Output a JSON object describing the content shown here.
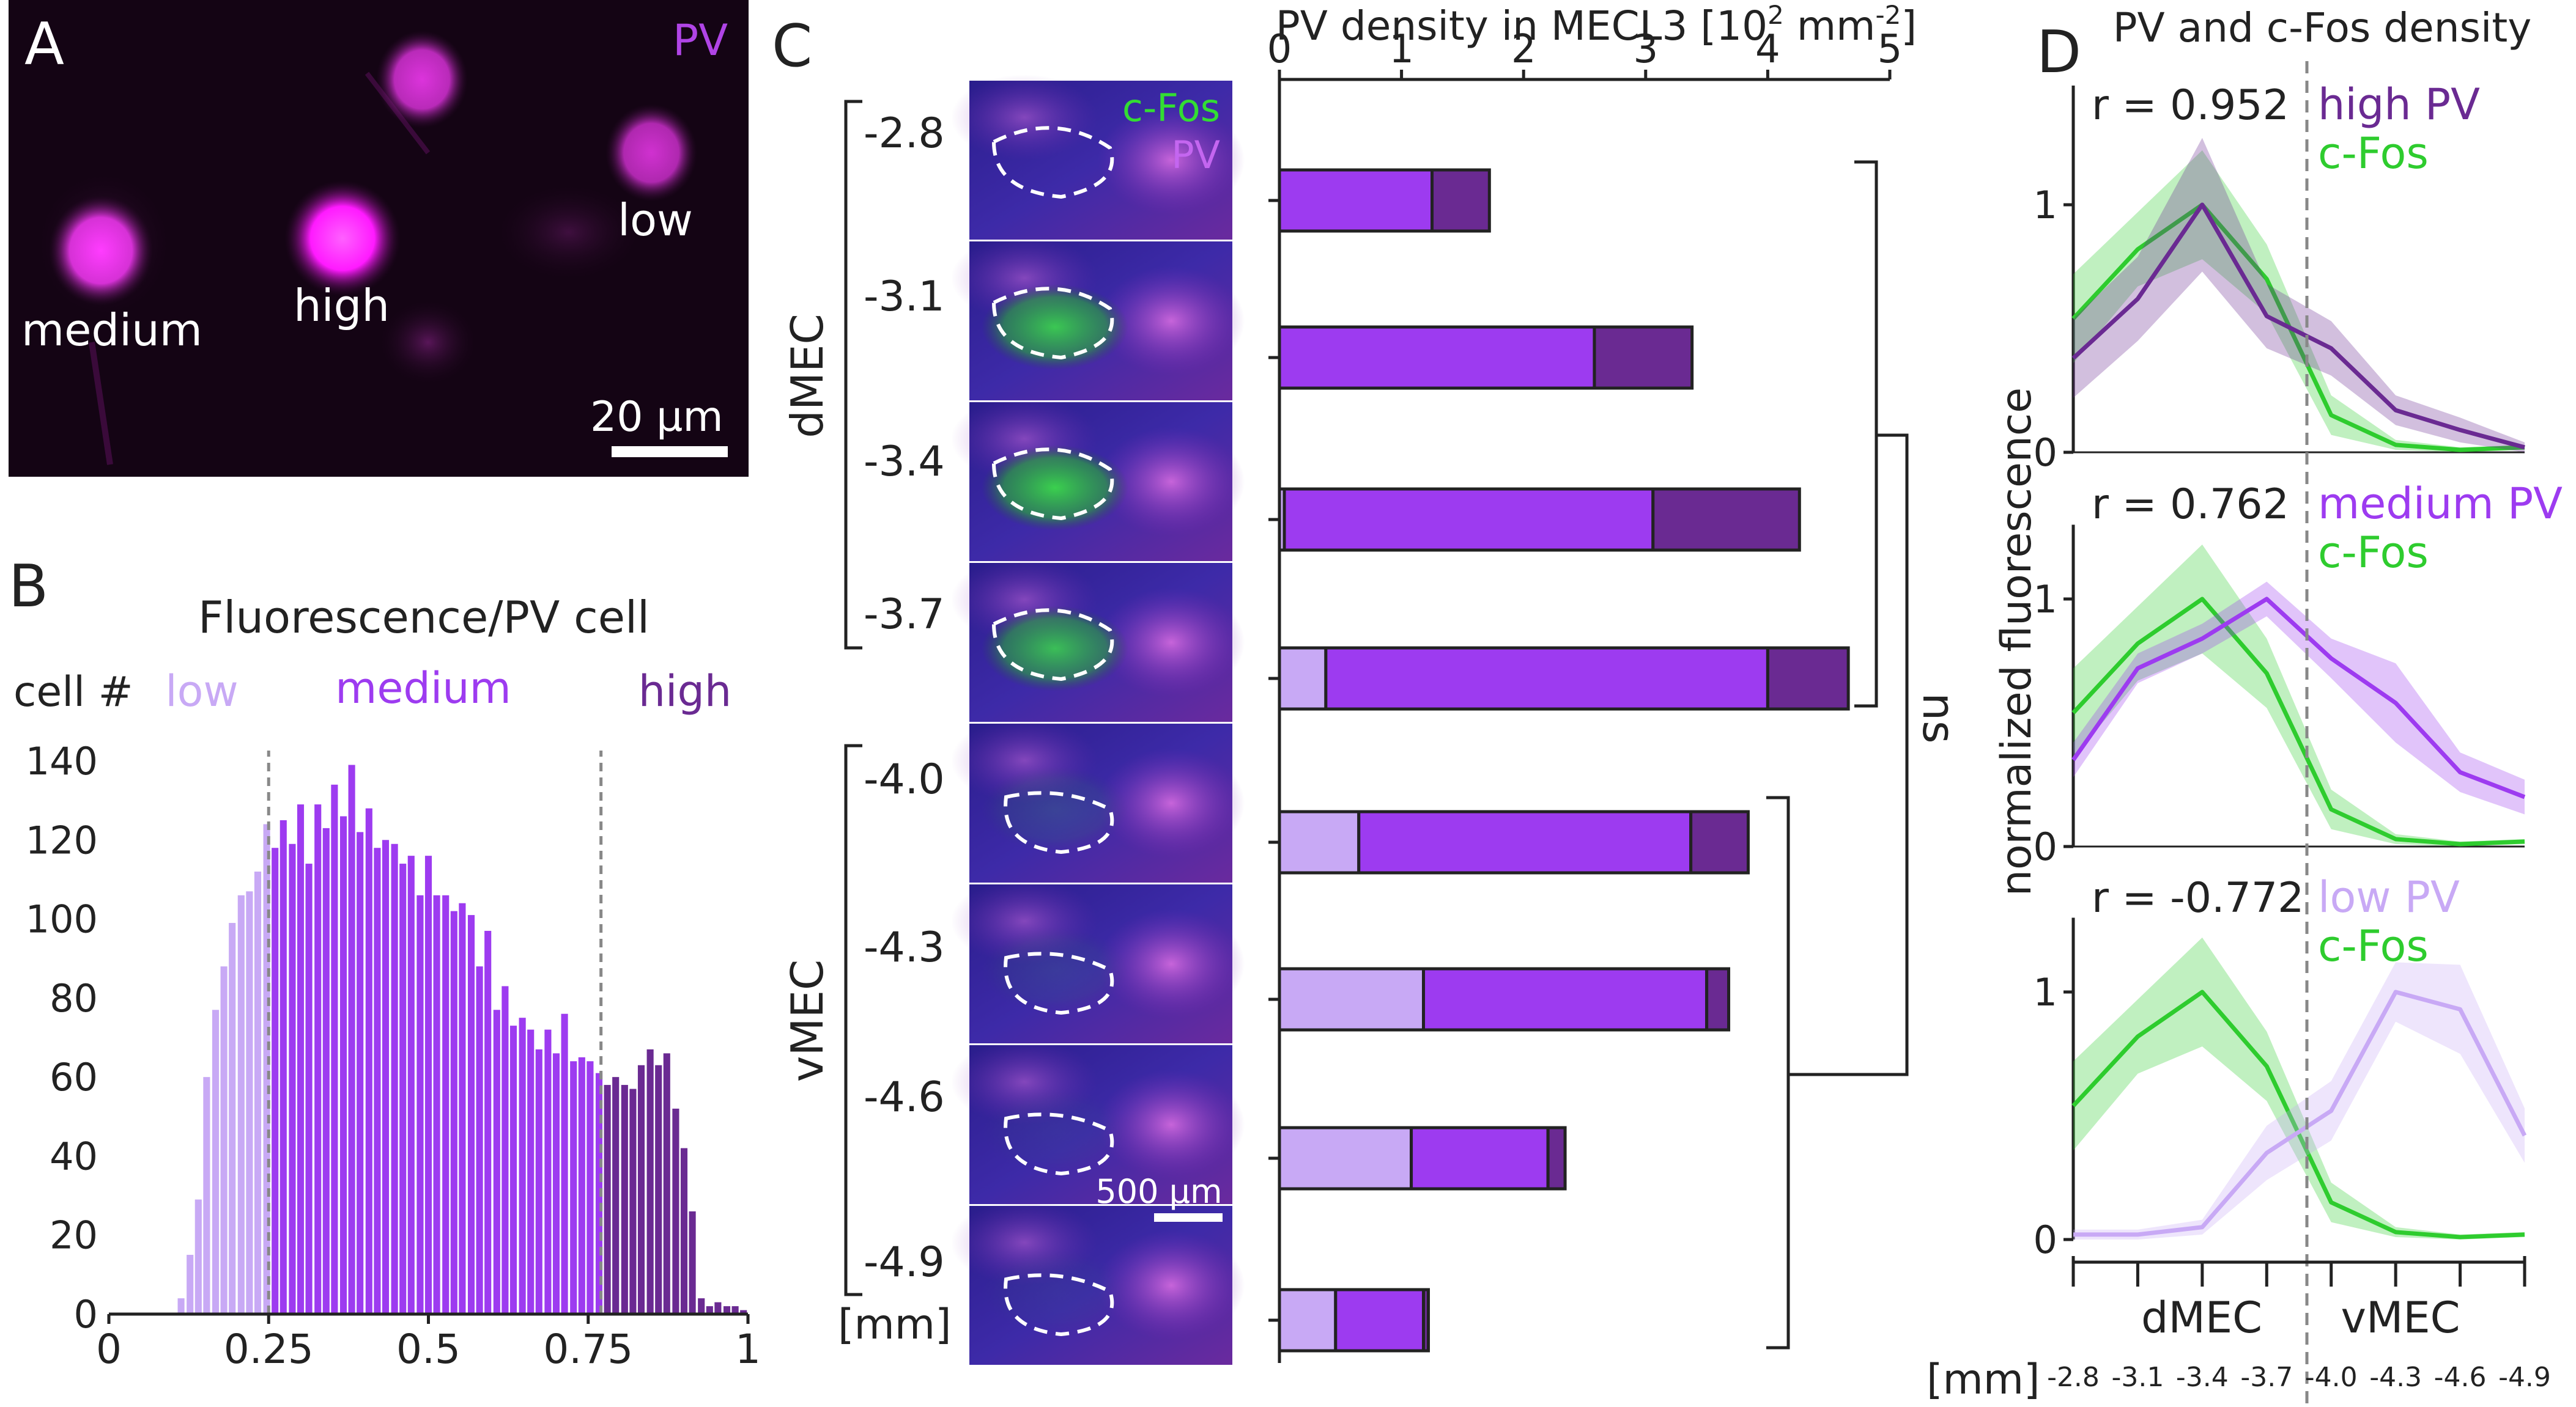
{
  "colors": {
    "low": "#c8a9f5",
    "medium": "#9d3bf0",
    "high": "#6a2a92",
    "cfos": "#2ecc2e",
    "pv": "#cc33cc",
    "dashed": "#888888",
    "text": "#222222"
  },
  "panels": {
    "A": {
      "letter": "A",
      "pv_label": "PV",
      "cells": [
        "medium",
        "high",
        "low"
      ],
      "scalebar": "20 µm"
    },
    "B": {
      "letter": "B",
      "title": "Fluorescence/PV cell",
      "ylabel": "cell #",
      "group_labels": [
        "low",
        "medium",
        "high"
      ]
    },
    "C": {
      "letter": "C",
      "title_prefix": "PV density in MECL3 [10",
      "title_sup1": "2",
      "title_mid": " mm",
      "title_sup2": "-2",
      "title_suffix": "]",
      "image_labels": {
        "cfos": "c-Fos",
        "pv": "PV",
        "scalebar": "500 µm"
      },
      "dmec": "dMEC",
      "vmec": "vMEC",
      "mm": "[mm]",
      "ns": "ns"
    },
    "D": {
      "letter": "D",
      "title": "PV and c-Fos density",
      "ylabel": "normalized fluorescence",
      "xgroup_labels": [
        "dMEC",
        "vMEC"
      ],
      "mm": "[mm]",
      "r_values": [
        "r = 0.952",
        "r = 0.762",
        "r = -0.772"
      ],
      "legend_pv": [
        "high PV",
        "medium PV",
        "low PV"
      ],
      "legend_cfos": "c-Fos"
    }
  },
  "chart_data": [
    {
      "id": "B",
      "type": "bar",
      "title": "Fluorescence/PV cell",
      "xlabel": "",
      "ylabel": "cell #",
      "xlim": [
        0,
        1
      ],
      "ylim": [
        0,
        140
      ],
      "xticks": [
        0,
        0.25,
        0.5,
        0.75,
        1
      ],
      "xtick_labels": [
        "0",
        "0.25",
        "0.5",
        "0.75",
        "1"
      ],
      "yticks": [
        0,
        20,
        40,
        60,
        80,
        100,
        120,
        140
      ],
      "bin_width": 0.0133,
      "bin_centers": [
        0.113,
        0.127,
        0.14,
        0.153,
        0.167,
        0.18,
        0.193,
        0.207,
        0.22,
        0.233,
        0.247,
        0.26,
        0.273,
        0.287,
        0.3,
        0.313,
        0.327,
        0.34,
        0.353,
        0.367,
        0.38,
        0.393,
        0.407,
        0.42,
        0.433,
        0.447,
        0.46,
        0.473,
        0.487,
        0.5,
        0.513,
        0.527,
        0.54,
        0.553,
        0.567,
        0.58,
        0.593,
        0.607,
        0.62,
        0.633,
        0.647,
        0.66,
        0.673,
        0.687,
        0.7,
        0.713,
        0.727,
        0.74,
        0.753,
        0.767,
        0.78,
        0.793,
        0.807,
        0.82,
        0.833,
        0.847,
        0.86,
        0.873,
        0.887,
        0.9,
        0.913,
        0.927,
        0.94,
        0.953,
        0.967,
        0.98,
        0.993
      ],
      "counts": [
        4,
        15,
        29,
        60,
        77,
        88,
        99,
        106,
        107,
        112,
        124,
        118,
        125,
        119,
        129,
        114,
        129,
        123,
        134,
        126,
        139,
        122,
        128,
        118,
        120,
        119,
        114,
        116,
        106,
        116,
        106,
        106,
        102,
        104,
        101,
        88,
        97,
        77,
        83,
        73,
        75,
        72,
        67,
        72,
        66,
        76,
        64,
        65,
        64,
        61,
        58,
        60,
        58,
        57,
        63,
        67,
        63,
        66,
        52,
        42,
        26,
        4,
        2,
        3,
        2,
        2,
        1
      ],
      "thresholds": [
        0.25,
        0.77
      ],
      "groups": [
        "low",
        "medium",
        "high"
      ]
    },
    {
      "id": "C",
      "type": "bar",
      "orientation": "horizontal",
      "stacked": true,
      "title": "PV density in MECL3 [10^2 mm^-2]",
      "xlim": [
        0,
        5
      ],
      "xticks": [
        0,
        1,
        2,
        3,
        4,
        5
      ],
      "categories": [
        "-2.8",
        "-3.1",
        "-3.4",
        "-3.7",
        "-4.0",
        "-4.3",
        "-4.6",
        "-4.9"
      ],
      "series": [
        {
          "name": "low",
          "values": [
            0.0,
            0.0,
            0.04,
            0.38,
            0.65,
            1.18,
            1.08,
            0.46
          ]
        },
        {
          "name": "medium",
          "values": [
            1.25,
            2.58,
            3.02,
            3.62,
            2.72,
            2.32,
            1.12,
            0.72
          ]
        },
        {
          "name": "high",
          "values": [
            0.47,
            0.8,
            1.2,
            0.66,
            0.47,
            0.18,
            0.14,
            0.04
          ]
        }
      ],
      "annotation": "ns"
    },
    {
      "id": "D",
      "type": "line",
      "title": "PV and c-Fos density",
      "ylabel": "normalized fluorescence",
      "x": [
        "-2.8",
        "-3.1",
        "-3.4",
        "-3.7",
        "-4.0",
        "-4.3",
        "-4.6",
        "-4.9"
      ],
      "ylim": [
        0,
        1.3
      ],
      "yticks": [
        0,
        1
      ],
      "subplots": [
        {
          "r": 0.952,
          "series": [
            {
              "name": "high PV",
              "values": [
                0.38,
                0.62,
                1.0,
                0.55,
                0.42,
                0.17,
                0.09,
                0.02
              ],
              "err": [
                0.16,
                0.17,
                0.27,
                0.13,
                0.11,
                0.06,
                0.05,
                0.02
              ]
            },
            {
              "name": "c-Fos",
              "values": [
                0.54,
                0.82,
                1.0,
                0.7,
                0.15,
                0.03,
                0.01,
                0.02
              ],
              "err": [
                0.18,
                0.15,
                0.22,
                0.14,
                0.08,
                0.02,
                0.01,
                0.01
              ]
            }
          ]
        },
        {
          "r": 0.762,
          "series": [
            {
              "name": "medium PV",
              "values": [
                0.35,
                0.72,
                0.84,
                1.0,
                0.76,
                0.58,
                0.3,
                0.2
              ],
              "err": [
                0.07,
                0.06,
                0.06,
                0.07,
                0.08,
                0.16,
                0.08,
                0.07
              ]
            },
            {
              "name": "c-Fos",
              "values": [
                0.54,
                0.82,
                1.0,
                0.7,
                0.15,
                0.03,
                0.01,
                0.02
              ],
              "err": [
                0.18,
                0.15,
                0.22,
                0.14,
                0.08,
                0.02,
                0.01,
                0.01
              ]
            }
          ]
        },
        {
          "r": -0.772,
          "series": [
            {
              "name": "low PV",
              "values": [
                0.02,
                0.02,
                0.05,
                0.35,
                0.52,
                1.0,
                0.93,
                0.42
              ],
              "err": [
                0.02,
                0.02,
                0.03,
                0.11,
                0.12,
                0.12,
                0.18,
                0.11
              ]
            },
            {
              "name": "c-Fos",
              "values": [
                0.54,
                0.82,
                1.0,
                0.7,
                0.15,
                0.03,
                0.01,
                0.02
              ],
              "err": [
                0.18,
                0.15,
                0.22,
                0.14,
                0.08,
                0.02,
                0.01,
                0.01
              ]
            }
          ]
        }
      ]
    }
  ]
}
